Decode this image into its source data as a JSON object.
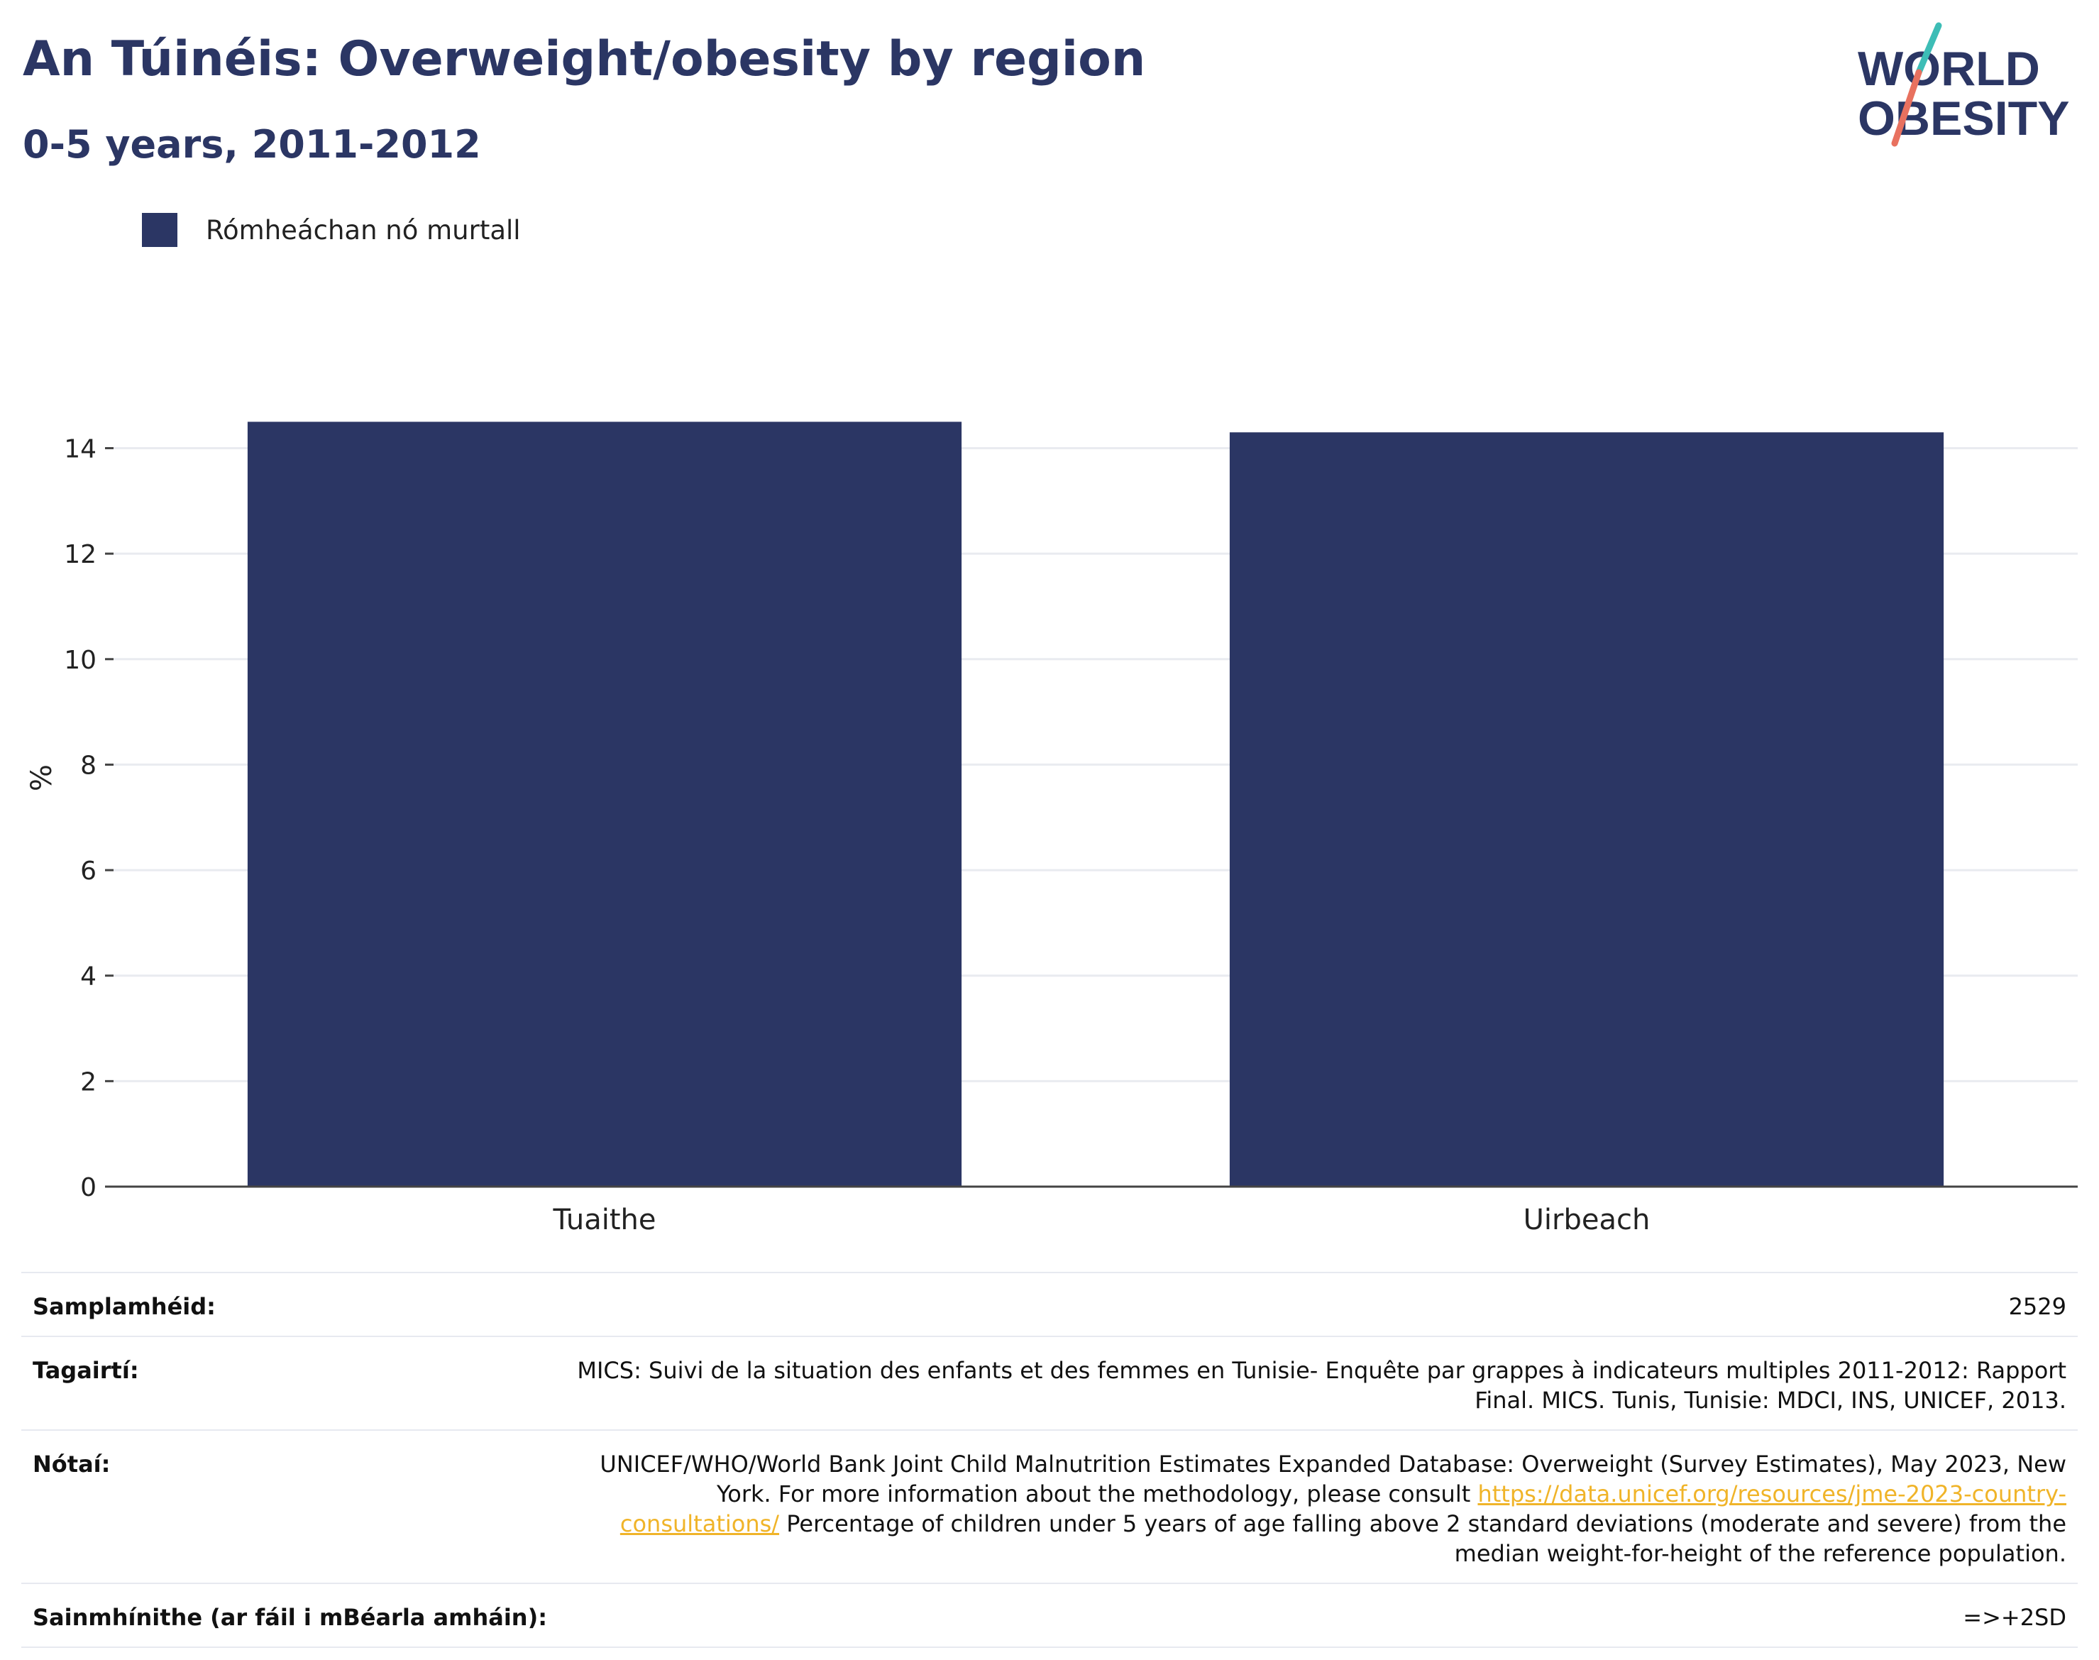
{
  "header": {
    "title": "An Túinéis: Overweight/obesity by region",
    "subtitle": "0-5 years, 2011-2012"
  },
  "logo": {
    "line1": "WORLD",
    "line2": "OBESITY",
    "colors": {
      "text": "#2b3664",
      "slash_top": "#3dbdb6",
      "slash_bottom": "#e8715f"
    }
  },
  "colors": {
    "bar": "#2b3664",
    "grid": "#e9ebf0",
    "axis": "#444444",
    "link": "#f0b429"
  },
  "chart_data": {
    "type": "bar",
    "categories": [
      "Tuaithe",
      "Uirbeach"
    ],
    "series": [
      {
        "name": "Rómheáchan nó murtall",
        "values": [
          14.5,
          14.3
        ]
      }
    ],
    "ylabel": "%",
    "ylim": [
      0,
      15.5
    ],
    "yticks": [
      0,
      2,
      4,
      6,
      8,
      10,
      12,
      14
    ],
    "grid": true,
    "legend": "top-left"
  },
  "info": {
    "sample_size": {
      "label": "Samplamhéid:",
      "value": "2529"
    },
    "references": {
      "label": "Tagairtí:",
      "value": "MICS: Suivi de la situation des enfants et des femmes en Tunisie- Enquête par grappes à indicateurs multiples 2011-2012: Rapport Final. MICS. Tunis, Tunisie: MDCI, INS, UNICEF, 2013."
    },
    "notes": {
      "label": "Nótaí:",
      "text_before": "UNICEF/WHO/World Bank Joint Child Malnutrition Estimates Expanded Database: Overweight (Survey Estimates), May 2023, New York. For more information about the methodology, please consult ",
      "link": "https://data.unicef.org/resources/jme-2023-country-consultations/",
      "text_after": " Percentage of children under 5 years of age falling above 2 standard deviations (moderate and severe) from the median weight-for-height of the reference population."
    },
    "definitions": {
      "label": "Sainmhínithe (ar fáil i mBéarla amháin):",
      "value": "=>+2SD"
    }
  }
}
